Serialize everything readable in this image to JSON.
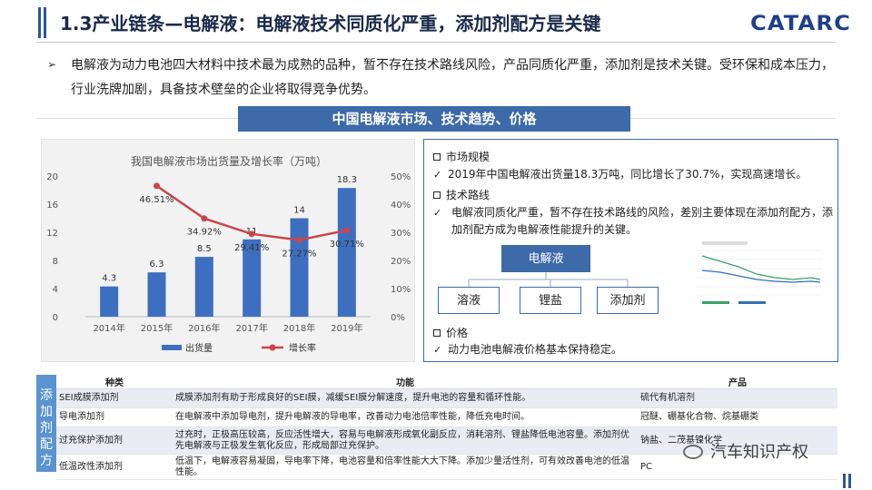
{
  "header": {
    "title": "1.3产业链条—电解液：电解液技术同质化严重，添加剂配方是关键",
    "logo": "CATARC"
  },
  "intro": {
    "bullet": "➢",
    "text": "电解液为动力电池四大材料中技术最为成熟的品种，暂不存在技术路线风险，产品同质化严重，添加剂是技术关键。受环保和成本压力，行业洗牌加剧，具备技术壁垒的企业将取得竞争优势。"
  },
  "banner": "中国电解液市场、技术趋势、价格",
  "chart_data": {
    "type": "bar",
    "title": "我国电解液市场出货量及增长率（万吨）",
    "categories": [
      "2014年",
      "2015年",
      "2016年",
      "2017年",
      "2018年",
      "2019年"
    ],
    "series": [
      {
        "name": "出货量",
        "type": "bar",
        "values": [
          4.3,
          6.3,
          8.5,
          11,
          14,
          18.3
        ],
        "labels": [
          "4.3",
          "6.3",
          "8.5",
          "11",
          "14",
          "18.3"
        ],
        "axis": "left"
      },
      {
        "name": "增长率",
        "type": "line",
        "values": [
          null,
          46.51,
          34.92,
          29.41,
          27.27,
          30.71
        ],
        "labels": [
          "",
          "46.51%",
          "34.92%",
          "29.41%",
          "27.27%",
          "30.71%"
        ],
        "axis": "right"
      }
    ],
    "left_axis": {
      "ticks": [
        "0",
        "4",
        "8",
        "12",
        "16",
        "20"
      ],
      "range": [
        0,
        20
      ]
    },
    "right_axis": {
      "ticks": [
        "0%",
        "10%",
        "20%",
        "30%",
        "40%",
        "50%"
      ],
      "range": [
        0,
        50
      ]
    },
    "legend_position": "bottom",
    "colors": {
      "bar": "#3d6fc0",
      "line": "#c9454a"
    }
  },
  "info": {
    "market": {
      "heading": "市场规模",
      "check": "✓",
      "text": "2019年中国电解液出货量18.3万吨，同比增长了30.7%，实现高速增长。"
    },
    "tech": {
      "heading": "技术路线",
      "check": "✓",
      "text": "电解液同质化严重，暂不存在技术路线的风险，差别主要体现在添加剂配方，添加剂配方成为电解液性能提升的关键。"
    },
    "tree": {
      "root": "电解液",
      "children": [
        "溶液",
        "锂盐",
        "添加剂"
      ]
    },
    "price": {
      "heading": "价格",
      "check": "✓",
      "text": "动力电池电解液价格基本保持稳定。"
    }
  },
  "additives": {
    "side_label": [
      "添",
      "加",
      "剂",
      "配",
      "方"
    ],
    "headers": [
      "种类",
      "功能",
      "产品"
    ],
    "rows": [
      [
        "SEI成膜添加剂",
        "成膜添加剂有助于形成良好的SEI膜，减缓SEI膜分解速度，提升电池的容量和循环性能。",
        "硫代有机溶剂"
      ],
      [
        "导电添加剂",
        "在电解液中添加导电剂，提升电解液的导电率，改善动力电池倍率性能，降低充电时间。",
        "冠醚、硼基化合物、烷基硼类"
      ],
      [
        "过充保护添加剂",
        "过充时，正极高压较高，反应活性增大，容易与电解液形成氧化副反应，消耗溶剂、锂盐降低电池容量。添加剂优先电解液与正极发生氧化反应，形成局部过充保护。",
        "钠盐、二茂基镍化学"
      ],
      [
        "低温改性添加剂",
        "低温下，电解液容易凝固，导电率下降，电池容量和倍率性能大大下降。添加少量活性剂，可有效改善电池的低温性能。",
        "PC"
      ]
    ]
  },
  "watermark": "汽车知识产权"
}
